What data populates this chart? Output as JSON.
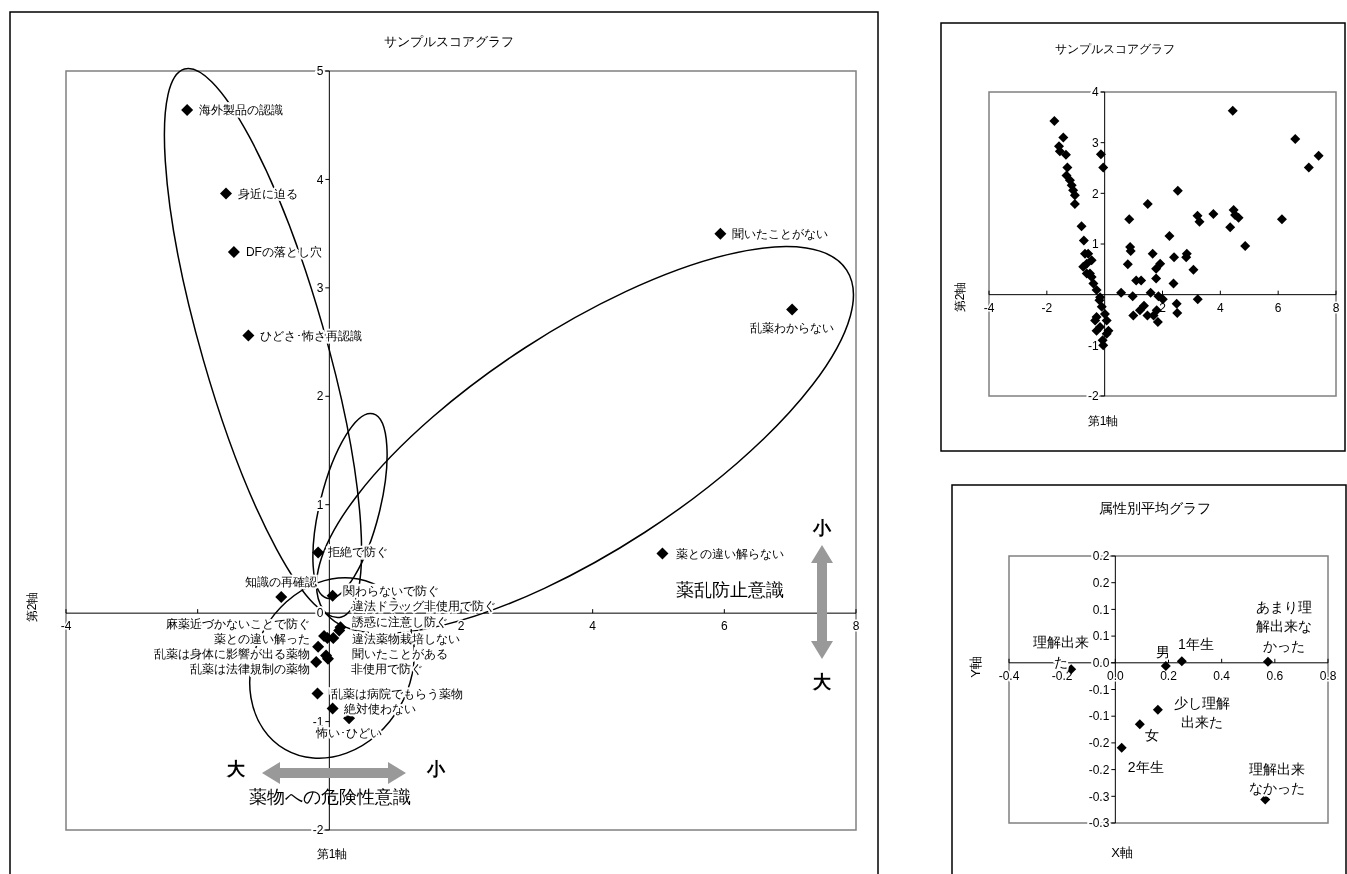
{
  "chart_data": [
    {
      "type": "scatter",
      "title": "サンプルスコアグラフ",
      "xlabel": "第1軸",
      "ylabel": "第2軸",
      "color": "#000000",
      "marker": "diamond",
      "xlim": [
        -4,
        8
      ],
      "ylim": [
        -2,
        5
      ],
      "xticks": [
        -4,
        -2,
        2,
        4,
        6,
        8
      ],
      "yticks": [
        -2,
        -1,
        0,
        1,
        2,
        3,
        4,
        5
      ],
      "x": [
        -2.16,
        -1.57,
        -1.45,
        -1.23,
        5.94,
        7.03,
        -0.17,
        5.06,
        -0.73,
        0.05,
        0.17,
        0.15,
        0.06,
        -0.08,
        -0.03,
        -0.17,
        -0.05,
        -0.2,
        -0.02,
        -0.18,
        0.05,
        0.3
      ],
      "values": [
        4.64,
        3.87,
        3.33,
        2.56,
        3.5,
        2.8,
        0.56,
        0.55,
        0.15,
        0.16,
        -0.13,
        -0.16,
        -0.23,
        -0.21,
        -0.23,
        -0.31,
        -0.39,
        -0.45,
        -0.42,
        -0.74,
        -0.88,
        -0.97
      ],
      "annotations": [
        {
          "text": "海外製品の認識",
          "x": -2.16,
          "y": 4.64
        },
        {
          "text": "身近に迫る",
          "x": -1.57,
          "y": 3.87
        },
        {
          "text": "DFの落とし穴",
          "x": -1.45,
          "y": 3.33
        },
        {
          "text": "ひどさ･怖さ再認識",
          "x": -1.23,
          "y": 2.56
        },
        {
          "text": "聞いたことがない",
          "x": 5.94,
          "y": 3.5
        },
        {
          "text": "乱薬わからない",
          "x": 7.03,
          "y": 2.8
        },
        {
          "text": "拒絶で防ぐ",
          "x": -0.17,
          "y": 0.56
        },
        {
          "text": "薬との違い解らない",
          "x": 5.06,
          "y": 0.55
        },
        {
          "text": "知識の再確認",
          "x": -0.73,
          "y": 0.15
        },
        {
          "text": "関わらないで防ぐ",
          "x": 0.05,
          "y": 0.16
        },
        {
          "text": "違法ドラッグ非使用で防ぐ",
          "x": 0.17,
          "y": -0.13
        },
        {
          "text": "誘惑に注意し防ぐ",
          "x": 0.15,
          "y": -0.16
        },
        {
          "text": "違法薬物栽培しない",
          "x": 0.06,
          "y": -0.23
        },
        {
          "text": "麻薬近づかないことで防ぐ",
          "x": -0.08,
          "y": -0.21
        },
        {
          "text": "薬との違い解った",
          "x": -0.03,
          "y": -0.23
        },
        {
          "text": "乱薬は身体に影響が出る薬物",
          "x": -0.17,
          "y": -0.31
        },
        {
          "text": "聞いたことがある",
          "x": -0.05,
          "y": -0.39
        },
        {
          "text": "乱薬は法律規制の薬物",
          "x": -0.2,
          "y": -0.45
        },
        {
          "text": "非使用で防ぐ",
          "x": -0.02,
          "y": -0.42
        },
        {
          "text": "乱薬は病院でもらう薬物",
          "x": -0.18,
          "y": -0.74
        },
        {
          "text": "絶対使わない",
          "x": 0.05,
          "y": -0.88
        },
        {
          "text": "怖い･ひどい",
          "x": 0.3,
          "y": -0.97
        },
        "薬乱防止意識",
        "小",
        "大",
        "大",
        "小",
        "薬物への危険性意識"
      ]
    },
    {
      "type": "scatter",
      "title": "サンプルスコアグラフ",
      "xlabel": "第1軸",
      "ylabel": "第2軸",
      "color": "#000000",
      "marker": "diamond",
      "xlim": [
        -4,
        8
      ],
      "ylim": [
        -2,
        4
      ],
      "xticks": [
        -4,
        -2,
        2,
        4,
        6,
        8
      ],
      "yticks": [
        -2,
        -1,
        1,
        2,
        3,
        4
      ],
      "x": [
        -1.74,
        -1.43,
        -1.58,
        -1.55,
        -1.34,
        -1.29,
        -1.32,
        -1.2,
        -1.14,
        -1.09,
        -1.03,
        -1.03,
        -0.8,
        -0.72,
        -0.68,
        -0.62,
        -0.51,
        -0.39,
        -0.28,
        -0.18,
        -0.28,
        -0.16,
        -0.05,
        0.07,
        0.01,
        -0.1,
        -0.57,
        -0.74,
        -0.45,
        -0.13,
        -0.05,
        4.43,
        6.59,
        7.06,
        7.4,
        2.53,
        1.49,
        0.85,
        6.13,
        3.21,
        3.28,
        3.76,
        4.46,
        4.51,
        4.63,
        4.34,
        4.86,
        2.24,
        0.88,
        0.9,
        0.8,
        1.66,
        1.92,
        1.78,
        1.78,
        2.4,
        2.84,
        2.82,
        3.07,
        1.09,
        1.26,
        2.38,
        0.57,
        0.97,
        1.59,
        1.86,
        2.01,
        2.49,
        2.51,
        3.22,
        0.99,
        1.22,
        1.36,
        1.48,
        1.8,
        1.84,
        1.69,
        -0.16,
        -0.33,
        0.07,
        0.13,
        -0.28,
        -0.07,
        -0.45,
        -0.62
      ],
      "values": [
        3.43,
        3.1,
        2.93,
        2.83,
        2.76,
        2.51,
        2.35,
        2.26,
        2.16,
        2.06,
        1.96,
        1.79,
        1.35,
        1.07,
        0.81,
        0.61,
        0.42,
        0.22,
        0.09,
        -0.11,
        -0.44,
        -0.64,
        -1.0,
        -0.77,
        -0.38,
        -0.24,
        0.81,
        0.55,
        0.35,
        2.77,
        2.51,
        3.63,
        3.07,
        2.51,
        2.74,
        2.05,
        1.79,
        1.49,
        1.49,
        1.56,
        1.44,
        1.59,
        1.67,
        1.57,
        1.52,
        1.33,
        0.96,
        1.16,
        0.94,
        0.86,
        0.6,
        0.81,
        0.61,
        0.51,
        0.32,
        0.74,
        0.81,
        0.74,
        0.49,
        0.28,
        0.28,
        0.22,
        0.04,
        -0.03,
        0.04,
        -0.03,
        -0.09,
        -0.18,
        -0.36,
        -0.09,
        -0.41,
        -0.31,
        -0.22,
        -0.41,
        -0.31,
        -0.54,
        -0.41,
        -0.05,
        -0.51,
        -0.51,
        -0.71,
        -0.71,
        -0.9,
        0.68,
        0.42
      ]
    },
    {
      "type": "scatter",
      "title": "属性別平均グラフ",
      "xlabel": "X軸",
      "ylabel": "Y軸",
      "color": "#000000",
      "marker": "diamond",
      "xlim": [
        -0.4,
        0.8
      ],
      "ylim": [
        -0.3,
        0.2
      ],
      "xticks": [
        -0.4,
        -0.2,
        {
          "value": 0,
          "label": "0.0"
        },
        0.2,
        0.4,
        0.6,
        0.8
      ],
      "yticks": [
        {
          "value": 0.2,
          "label": "0.2"
        },
        {
          "value": 0.15,
          "label": "0.2"
        },
        {
          "value": 0.1,
          "label": "0.1"
        },
        {
          "value": 0.05,
          "label": "0.1"
        },
        {
          "value": 0,
          "label": "0.0"
        },
        {
          "value": -0.05,
          "label": "-0.1"
        },
        {
          "value": -0.1,
          "label": "-0.1"
        },
        {
          "value": -0.15,
          "label": "-0.2"
        },
        {
          "value": -0.2,
          "label": "-0.2"
        },
        {
          "value": -0.25,
          "label": "-0.3"
        },
        {
          "value": -0.3,
          "label": "-0.3"
        }
      ],
      "x": [
        -0.166,
        0.19,
        0.25,
        0.574,
        0.16,
        0.092,
        0.024,
        0.564
      ],
      "values": [
        -0.012,
        -0.006,
        0.003,
        0.002,
        -0.088,
        -0.115,
        -0.159,
        -0.256
      ],
      "annotations": [
        {
          "text": "理解出来た",
          "x": -0.166,
          "y": -0.012
        },
        {
          "text": "男",
          "x": 0.19,
          "y": -0.006
        },
        {
          "text": "1年生",
          "x": 0.25,
          "y": 0.003
        },
        {
          "text": "あまり理解出来なかった",
          "x": 0.574,
          "y": 0.002
        },
        {
          "text": "少し理解出来た",
          "x": 0.16,
          "y": -0.088
        },
        {
          "text": "女",
          "x": 0.092,
          "y": -0.115
        },
        {
          "text": "2年生",
          "x": 0.024,
          "y": -0.159
        },
        {
          "text": "理解出来なかった",
          "x": 0.564,
          "y": -0.256
        }
      ]
    }
  ]
}
